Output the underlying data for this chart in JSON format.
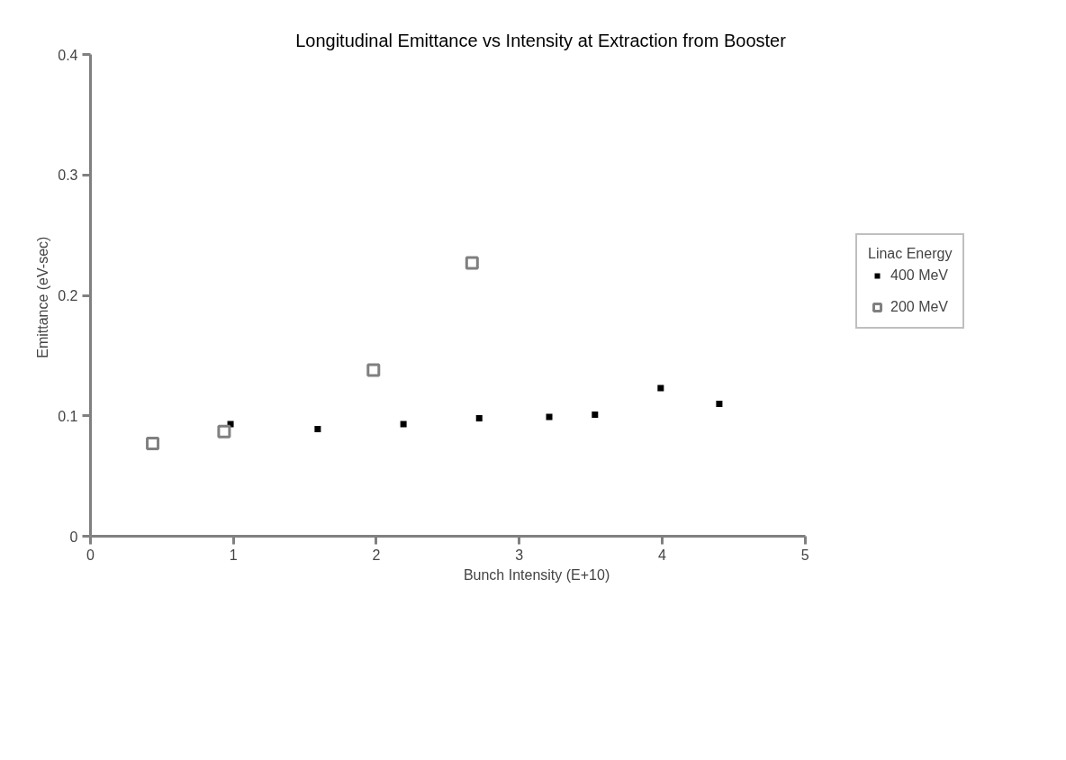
{
  "chart_data": {
    "type": "scatter",
    "title": "Longitudinal Emittance vs Intensity at Extraction from Booster",
    "xlabel": "Bunch  Intensity  (E+10)",
    "ylabel": "Emittance  (eV-sec)",
    "legend_title": "Linac Energy",
    "legend": "right",
    "marker": "square",
    "grid": false,
    "xlim": [
      0,
      5
    ],
    "xticks": [
      0,
      1,
      2,
      3,
      4,
      5
    ],
    "ylim": [
      0,
      0.4
    ],
    "yticks": [
      0,
      0.1,
      0.2,
      0.3,
      0.4
    ],
    "series": [
      {
        "name": "400 MeV",
        "color": "#000000",
        "x": [
          0.98,
          1.59,
          2.19,
          2.72,
          3.21,
          3.53,
          3.99,
          4.4
        ],
        "values": [
          0.093,
          0.089,
          0.093,
          0.098,
          0.099,
          0.101,
          0.123,
          0.11
        ]
      },
      {
        "name": "200 MeV",
        "color": "#808080",
        "x": [
          0.435,
          0.935,
          1.98,
          2.67
        ],
        "values": [
          0.077,
          0.087,
          0.138,
          0.227
        ]
      }
    ]
  }
}
